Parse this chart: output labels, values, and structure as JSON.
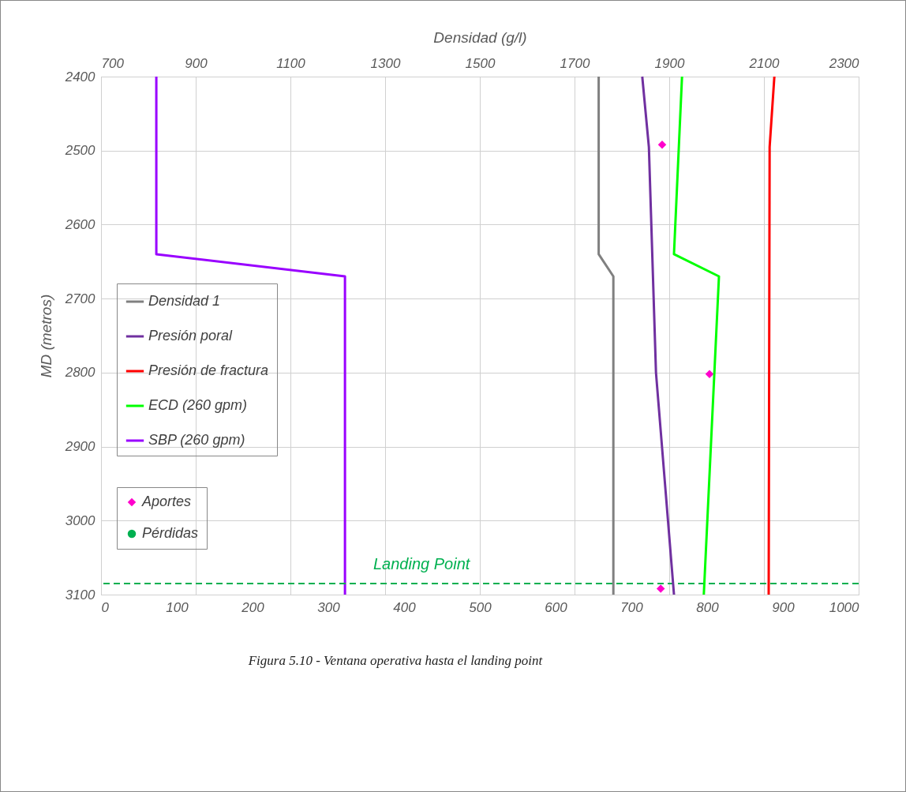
{
  "chart_data": {
    "type": "line",
    "x2label": "Densidad (g/l)",
    "ylabel": "MD (metros)",
    "xlim": [
      0,
      1000
    ],
    "xticks": [
      0,
      100,
      200,
      300,
      400,
      500,
      600,
      700,
      800,
      900,
      1000
    ],
    "x2lim": [
      700,
      2300
    ],
    "x2ticks": [
      700,
      900,
      1100,
      1300,
      1500,
      1700,
      1900,
      2100,
      2300
    ],
    "ylim": [
      3100,
      2400
    ],
    "yticks": [
      2400,
      2500,
      2600,
      2700,
      2800,
      2900,
      3000,
      3100
    ],
    "grid": true,
    "legend": "left",
    "line_style": "solid",
    "series": [
      {
        "name": "Densidad 1",
        "color": "#808080",
        "axis": "x2",
        "x": [
          1751,
          1751,
          1782,
          1782
        ],
        "values": [
          2400,
          2640,
          2670,
          3100
        ]
      },
      {
        "name": "Presión poral",
        "color": "#7030a0",
        "axis": "x2",
        "x": [
          1843,
          1857,
          1872,
          1910
        ],
        "values": [
          2400,
          2495,
          2800,
          3100
        ]
      },
      {
        "name": "Presión de fractura",
        "color": "#ff0000",
        "axis": "x2",
        "x": [
          2122,
          2112,
          2110
        ],
        "values": [
          2400,
          2495,
          3100
        ]
      },
      {
        "name": "Aportes",
        "color": "#ff00cc",
        "type": "scatter",
        "marker": "diamond",
        "axis": "x2",
        "x": [
          1885,
          1985,
          1882
        ],
        "values": [
          2492,
          2802,
          3092
        ]
      },
      {
        "name": "Pérdidas",
        "color": "#00b050",
        "type": "scatter",
        "marker": "circle",
        "axis": "x2"
      },
      {
        "name": "ECD (260 gpm)",
        "color": "#00ff00",
        "axis": "x2",
        "x": [
          1927,
          1910,
          2005,
          1973
        ],
        "values": [
          2400,
          2640,
          2670,
          3100
        ]
      },
      {
        "name": "SBP (260 gpm)",
        "color": "#9900ff",
        "x": [
          73,
          73,
          322,
          322
        ],
        "values": [
          2400,
          2640,
          2670,
          3100
        ]
      }
    ],
    "ref_lines": [
      {
        "axis": "y",
        "value": 3085,
        "label": "Landing Point",
        "color": "#00b050",
        "line_style": "dashed"
      }
    ],
    "annotations": [
      "Figura 5.10 - Ventana operativa hasta el landing point"
    ]
  }
}
